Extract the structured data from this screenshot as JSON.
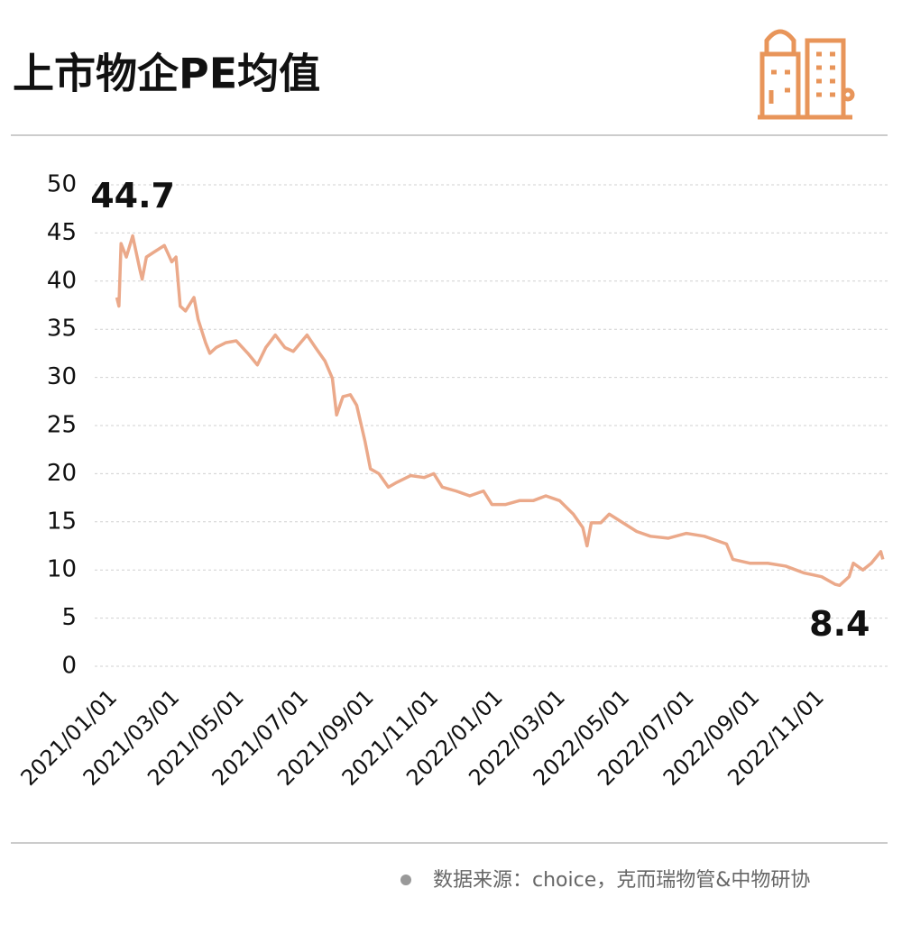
{
  "chart_data": {
    "type": "line",
    "title": "上市物企PE均值",
    "source": "数据来源：choice，克而瑞物管&中物研协",
    "x": [
      "2021/01/04",
      "2021/01/06",
      "2021/01/08",
      "2021/01/13",
      "2021/01/19",
      "2021/01/26",
      "2021/01/28",
      "2021/02/01",
      "2021/02/08",
      "2021/02/18",
      "2021/02/25",
      "2021/03/01",
      "2021/03/05",
      "2021/03/10",
      "2021/03/18",
      "2021/03/22",
      "2021/03/29",
      "2021/04/02",
      "2021/04/08",
      "2021/04/17",
      "2021/04/27",
      "2021/05/08",
      "2021/05/17",
      "2021/05/25",
      "2021/06/03",
      "2021/06/12",
      "2021/06/20",
      "2021/07/03",
      "2021/07/11",
      "2021/07/20",
      "2021/07/27",
      "2021/07/31",
      "2021/08/06",
      "2021/08/13",
      "2021/08/19",
      "2021/08/23",
      "2021/08/27",
      "2021/09/01",
      "2021/09/09",
      "2021/09/18",
      "2021/09/26",
      "2021/10/09",
      "2021/10/22",
      "2021/10/31",
      "2021/11/08",
      "2021/11/21",
      "2021/12/04",
      "2021/12/17",
      "2021/12/25",
      "2022/01/07",
      "2022/01/20",
      "2022/02/02",
      "2022/02/14",
      "2022/02/27",
      "2022/03/12",
      "2022/03/21",
      "2022/03/25",
      "2022/03/29",
      "2022/04/07",
      "2022/04/15",
      "2022/04/28",
      "2022/05/11",
      "2022/05/24",
      "2022/06/10",
      "2022/06/27",
      "2022/07/14",
      "2022/07/27",
      "2022/08/04",
      "2022/08/10",
      "2022/08/26",
      "2022/09/12",
      "2022/09/29",
      "2022/10/16",
      "2022/11/02",
      "2022/11/15",
      "2022/11/19",
      "2022/11/28",
      "2022/12/02",
      "2022/12/11",
      "2022/12/19",
      "2022/12/28",
      "2022/12/30"
    ],
    "series": [
      {
        "color": "#eba98a",
        "values": [
          38.3,
          37.4,
          43.9,
          42.5,
          44.7,
          41.1,
          40.2,
          42.5,
          43,
          43.7,
          42,
          42.5,
          37.4,
          36.9,
          38.3,
          36,
          33.6,
          32.5,
          33.1,
          33.6,
          33.8,
          32.5,
          31.3,
          33.1,
          34.4,
          33.1,
          32.7,
          34.4,
          33.1,
          31.7,
          29.9,
          26.1,
          28,
          28.2,
          27.1,
          25.2,
          23.3,
          20.5,
          20,
          18.6,
          19.1,
          19.8,
          19.6,
          20,
          18.6,
          18.2,
          17.7,
          18.2,
          16.8,
          16.8,
          17.2,
          17.2,
          17.7,
          17.2,
          15.8,
          14.4,
          12.5,
          14.9,
          14.9,
          15.8,
          14.9,
          14,
          13.5,
          13.3,
          13.8,
          13.5,
          13,
          12.7,
          11.1,
          10.7,
          10.7,
          10.4,
          9.7,
          9.3,
          8.5,
          8.4,
          9.3,
          10.7,
          10,
          10.7,
          11.9,
          11.1
        ]
      }
    ],
    "xlim": [
      "2021/01/01",
      "2022/12/31"
    ],
    "xticks": [
      "2021/01/01",
      "2021/03/01",
      "2021/05/01",
      "2021/07/01",
      "2021/09/01",
      "2021/11/01",
      "2022/01/01",
      "2022/03/01",
      "2022/05/01",
      "2022/07/01",
      "2022/09/01",
      "2022/11/01"
    ],
    "ylim": [
      0,
      50
    ],
    "yticks": [
      0,
      5,
      10,
      15,
      20,
      25,
      30,
      35,
      40,
      45,
      50
    ],
    "grid": true,
    "annotations": [
      {
        "x": "2021/01/19",
        "value": 44.7
      },
      {
        "x": "2022/11/19",
        "value": 8.4
      }
    ]
  }
}
